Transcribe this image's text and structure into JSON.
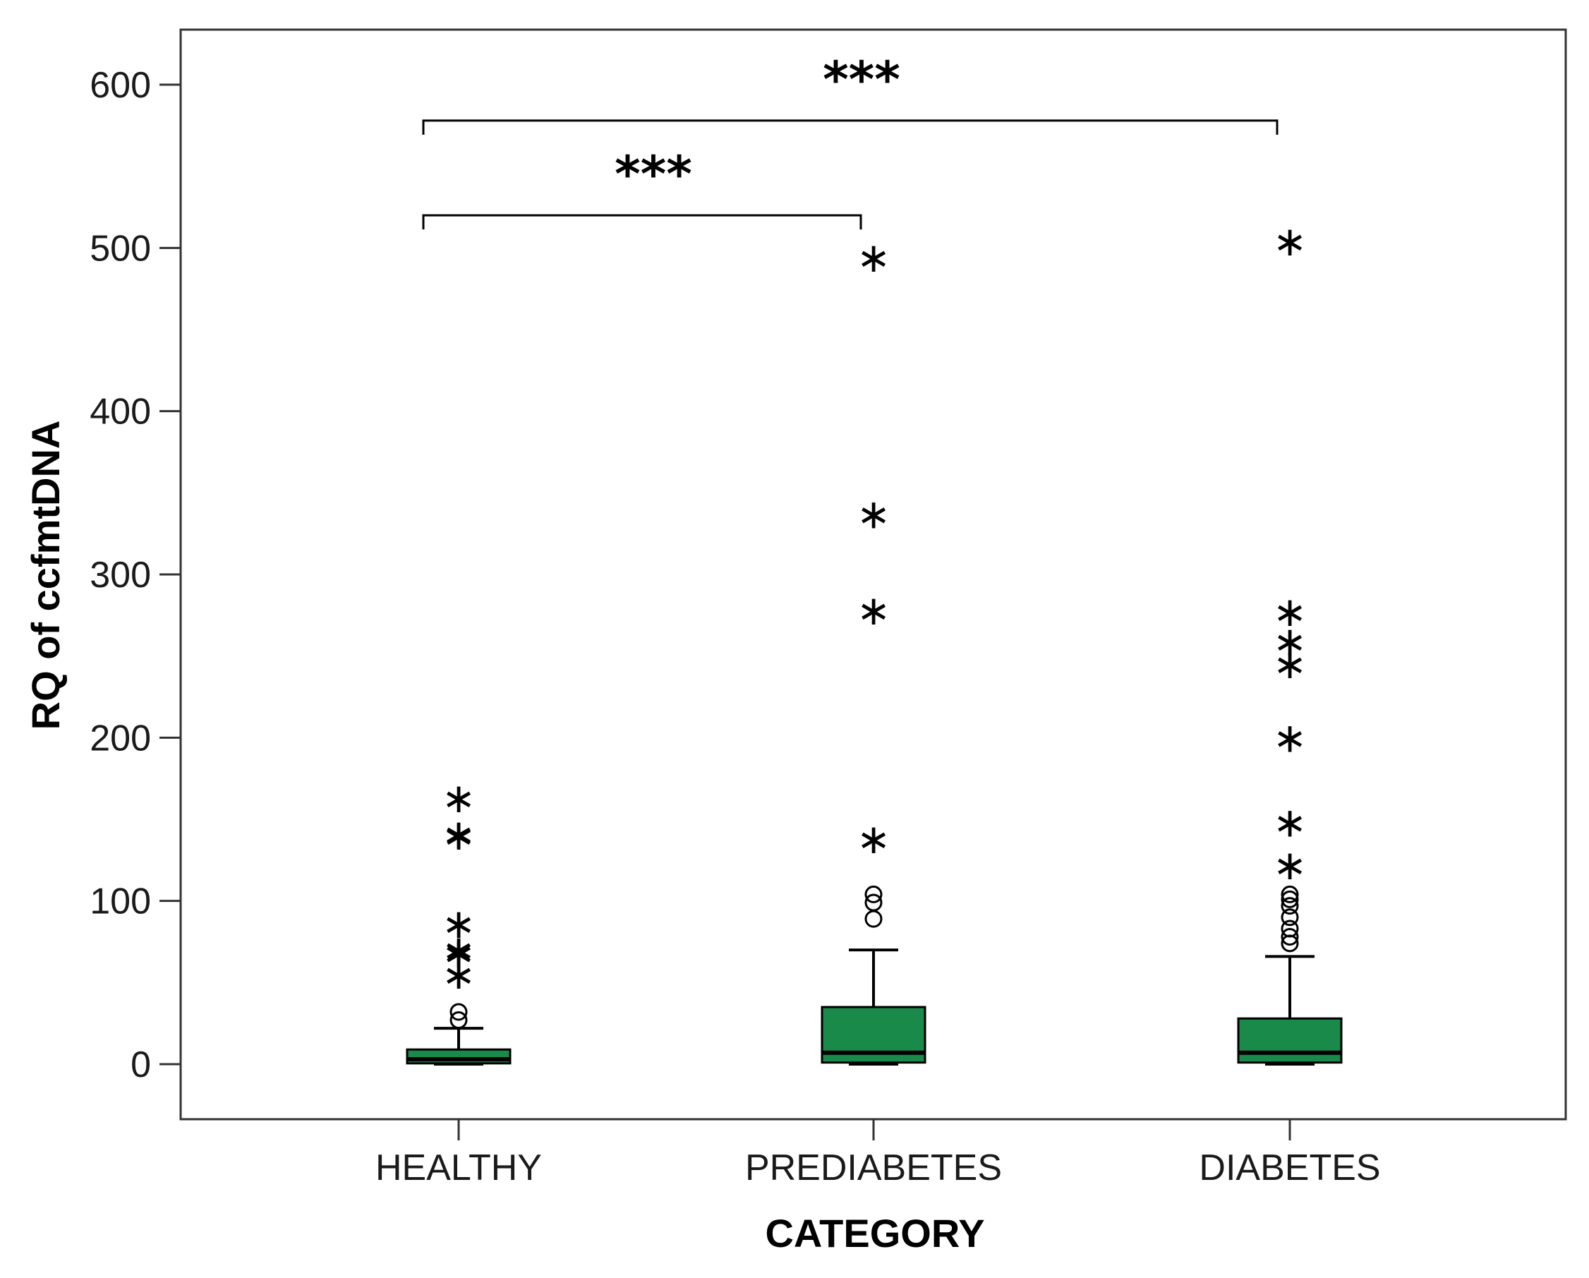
{
  "chart_data": {
    "type": "boxplot",
    "title": "",
    "xlabel": "CATEGORY",
    "ylabel": "RQ of ccfmtDNA",
    "ylim": [
      -35,
      630
    ],
    "yticks": [
      0,
      100,
      200,
      300,
      400,
      500,
      600
    ],
    "ytick_labels": [
      "0",
      "100",
      "200",
      "300",
      "400",
      "500",
      "600"
    ],
    "categories": [
      "HEALTHY",
      "PREDIABETES",
      "DIABETES"
    ],
    "box_color": "#1a8a4a",
    "series": [
      {
        "name": "HEALTHY",
        "whisker_low": 0,
        "q1": 0.5,
        "median": 3,
        "q3": 9,
        "whisker_high": 22,
        "outliers_circle": [
          27,
          32
        ],
        "outliers_star": [
          55,
          68,
          70,
          86,
          140,
          141,
          163
        ]
      },
      {
        "name": "PREDIABETES",
        "whisker_low": 0,
        "q1": 1,
        "median": 7,
        "q3": 35,
        "whisker_high": 70,
        "outliers_circle": [
          89,
          99,
          104
        ],
        "outliers_star": [
          138,
          278,
          337,
          494
        ]
      },
      {
        "name": "DIABETES",
        "whisker_low": 0,
        "q1": 1,
        "median": 7,
        "q3": 28,
        "whisker_high": 66,
        "outliers_circle": [
          74,
          78,
          83,
          90,
          97,
          101,
          104
        ],
        "outliers_star": [
          122,
          148,
          200,
          245,
          259,
          277,
          504
        ]
      }
    ],
    "comparisons": [
      {
        "from": "HEALTHY",
        "to": "PREDIABETES",
        "label": "***",
        "bracket_y": 520
      },
      {
        "from": "HEALTHY",
        "to": "DIABETES",
        "label": "***",
        "bracket_y": 578
      }
    ]
  }
}
